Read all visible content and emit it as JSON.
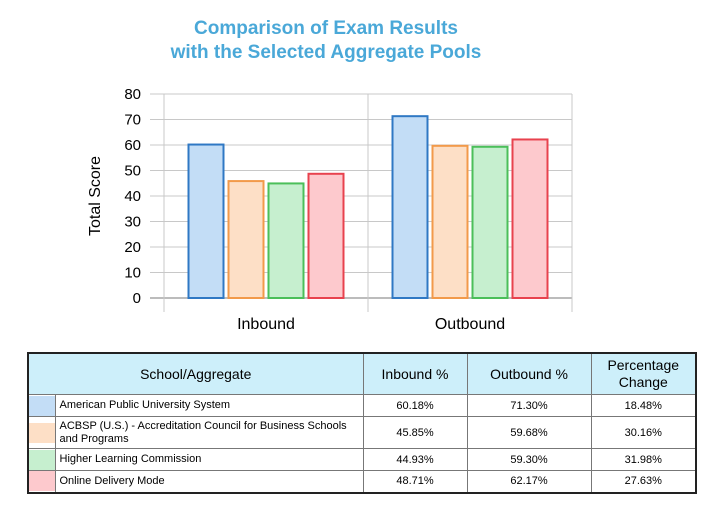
{
  "chart_data": {
    "type": "bar",
    "title": [
      "Comparison of Exam Results",
      "with the Selected Aggregate Pools"
    ],
    "ylabel": "Total Score",
    "xlabel": "",
    "ylim": [
      0,
      80
    ],
    "yticks": [
      0,
      10,
      20,
      30,
      40,
      50,
      60,
      70,
      80
    ],
    "grid": true,
    "categories": [
      "Inbound",
      "Outbound"
    ],
    "series": [
      {
        "name": "American Public University System",
        "fill": "#c3ddf6",
        "stroke": "#2f78c4",
        "values": [
          60.18,
          71.3
        ]
      },
      {
        "name": "ACBSP (U.S.) - Accreditation Council for Business Schools and Programs",
        "fill": "#fddfc6",
        "stroke": "#f29a4a",
        "values": [
          45.85,
          59.68
        ]
      },
      {
        "name": "Higher Learning Commission",
        "fill": "#c6efcf",
        "stroke": "#4bbf5a",
        "values": [
          44.93,
          59.3
        ]
      },
      {
        "name": "Online Delivery Mode",
        "fill": "#fdc9cd",
        "stroke": "#e8424e",
        "values": [
          48.71,
          62.17
        ]
      }
    ]
  },
  "table": {
    "headers": {
      "name": "School/Aggregate",
      "inbound": "Inbound %",
      "outbound": "Outbound %",
      "change": "Percentage Change"
    },
    "rows": [
      {
        "swatch": "#c3ddf6",
        "name": "American Public University System",
        "inbound": "60.18%",
        "outbound": "71.30%",
        "change": "18.48%"
      },
      {
        "swatch": "#fddfc6",
        "name": "ACBSP (U.S.) - Accreditation Council for Business Schools and Programs",
        "inbound": "45.85%",
        "outbound": "59.68%",
        "change": "30.16%"
      },
      {
        "swatch": "#c6efcf",
        "name": "Higher Learning Commission",
        "inbound": "44.93%",
        "outbound": "59.30%",
        "change": "31.98%"
      },
      {
        "swatch": "#fdc9cd",
        "name": "Online Delivery Mode",
        "inbound": "48.71%",
        "outbound": "62.17%",
        "change": "27.63%"
      }
    ]
  }
}
